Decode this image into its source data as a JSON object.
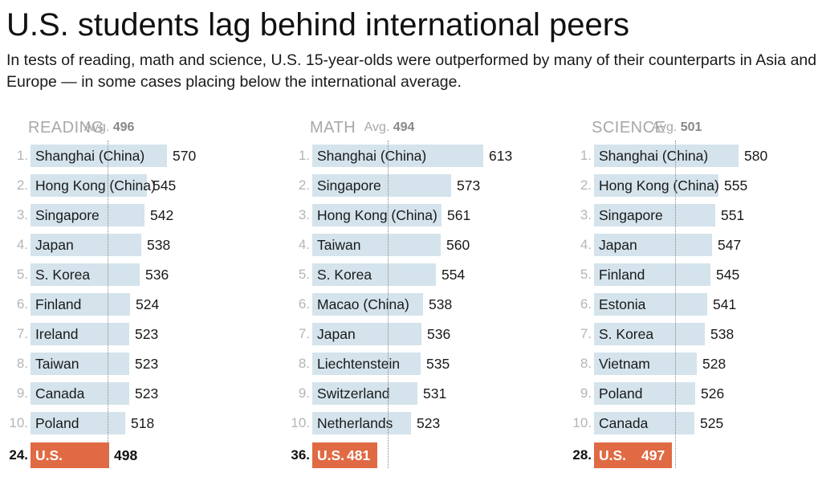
{
  "title": "U.S. students lag behind international peers",
  "subtitle": "In tests of reading, math and science, U.S. 15-year-olds were outperformed by many of their counterparts in Asia and Europe — in some cases placing below the international average.",
  "colors": {
    "bar": "#d4e3ec",
    "us_bar": "#e06a43",
    "avg_line": "#888888"
  },
  "chart_data": [
    {
      "type": "bar",
      "title": "READING",
      "avg_label": "Avg.",
      "average": 496,
      "xlim": [
        400,
        620
      ],
      "ranks": [
        "1.",
        "2.",
        "3.",
        "4.",
        "5.",
        "6.",
        "7.",
        "8.",
        "9.",
        "10."
      ],
      "categories": [
        "Shanghai (China)",
        "Hong Kong (China)",
        "Singapore",
        "Japan",
        "S. Korea",
        "Finland",
        "Ireland",
        "Taiwan",
        "Canada",
        "Poland"
      ],
      "values": [
        570,
        545,
        542,
        538,
        536,
        524,
        523,
        523,
        523,
        518
      ],
      "us": {
        "rank": "24.",
        "label": "U.S.",
        "value": 498
      }
    },
    {
      "type": "bar",
      "title": "MATH",
      "avg_label": "Avg.",
      "average": 494,
      "xlim": [
        400,
        620
      ],
      "ranks": [
        "1.",
        "2.",
        "3.",
        "4.",
        "5.",
        "6.",
        "7.",
        "8.",
        "9.",
        "10."
      ],
      "categories": [
        "Shanghai (China)",
        "Singapore",
        "Hong Kong (China)",
        "Taiwan",
        "S. Korea",
        "Macao (China)",
        "Japan",
        "Liechtenstein",
        "Switzerland",
        "Netherlands"
      ],
      "values": [
        613,
        573,
        561,
        560,
        554,
        538,
        536,
        535,
        531,
        523
      ],
      "us": {
        "rank": "36.",
        "label": "U.S.",
        "value": 481
      }
    },
    {
      "type": "bar",
      "title": "SCIENCE",
      "avg_label": "Avg.",
      "average": 501,
      "xlim": [
        400,
        620
      ],
      "ranks": [
        "1.",
        "2.",
        "3.",
        "4.",
        "5.",
        "6.",
        "7.",
        "8.",
        "9.",
        "10."
      ],
      "categories": [
        "Shanghai (China)",
        "Hong Kong (China)",
        "Singapore",
        "Japan",
        "Finland",
        "Estonia",
        "S. Korea",
        "Vietnam",
        "Poland",
        "Canada"
      ],
      "values": [
        580,
        555,
        551,
        547,
        545,
        541,
        538,
        528,
        526,
        525
      ],
      "us": {
        "rank": "28.",
        "label": "U.S.",
        "value": 497
      }
    }
  ]
}
